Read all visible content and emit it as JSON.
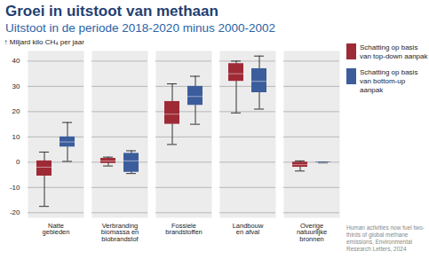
{
  "chart_data": {
    "type": "box",
    "title": "Groei in uitstoot van methaan",
    "subtitle": "Uitstoot in de periode 2018-2020 minus 2000-2002",
    "y_label": "Miljard kilo CH₄ per jaar",
    "categories": [
      "Natte gebieden",
      "Verbranding biomassa en biobrandstof",
      "Fossiele brandstoffen",
      "Landbouw en afval",
      "Overige natuurlijke bronnen"
    ],
    "series": [
      {
        "name": "Schatting op basis van top-down aanpak",
        "color": "#9e2a36",
        "values": [
          {
            "min": -17.5,
            "q1": -5.5,
            "median": -2,
            "q3": 0.5,
            "max": 4
          },
          {
            "min": -1.5,
            "q1": -0.5,
            "median": 0.5,
            "q3": 1.5,
            "max": 2
          },
          {
            "min": 7,
            "q1": 15,
            "median": 19,
            "q3": 24,
            "max": 31
          },
          {
            "min": 19.5,
            "q1": 32,
            "median": 35,
            "q3": 39,
            "max": 40
          },
          {
            "min": -3.5,
            "q1": -2,
            "median": -1,
            "q3": 0,
            "max": 0.5
          }
        ]
      },
      {
        "name": "Schatting op basis van bottom-up aanpak",
        "color": "#3c5d9c",
        "values": [
          {
            "min": 0.3,
            "q1": 6,
            "median": 8,
            "q3": 10,
            "max": 15.7
          },
          {
            "min": -4.5,
            "q1": -4,
            "median": 0.5,
            "q3": 3.5,
            "max": 4.5
          },
          {
            "min": 15,
            "q1": 22.5,
            "median": 26,
            "q3": 30,
            "max": 34
          },
          {
            "min": 21,
            "q1": 27.5,
            "median": 32,
            "q3": 37,
            "max": 42
          },
          {
            "min": -0.3,
            "q1": -0.3,
            "median": -0.2,
            "q3": 0,
            "max": 0
          }
        ]
      }
    ],
    "ylim": [
      -22,
      44
    ],
    "yticks": [
      -20,
      -10,
      0,
      10,
      20,
      30,
      40
    ],
    "grid": true,
    "legend": "right",
    "source": "Human activities now fuel two-thirds of global methane emissions, Environmental Research Letters, 2024"
  }
}
